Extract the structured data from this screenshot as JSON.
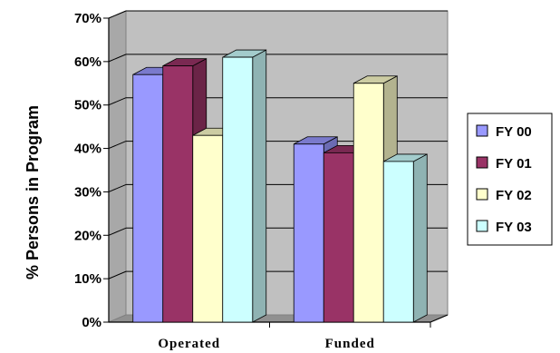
{
  "chart_data": {
    "type": "bar",
    "title": "",
    "xlabel": "",
    "ylabel": "% Persons in Program",
    "ylim": [
      0,
      70
    ],
    "yticks": [
      "0%",
      "10%",
      "20%",
      "30%",
      "40%",
      "50%",
      "60%",
      "70%"
    ],
    "categories": [
      "Operated",
      "Funded"
    ],
    "series": [
      {
        "name": "FY 00",
        "values": [
          57,
          41
        ],
        "color": "#9999ff",
        "side": "#6b6bb3",
        "top": "#7a7acc"
      },
      {
        "name": "FY 01",
        "values": [
          59,
          39
        ],
        "color": "#993366",
        "side": "#6b2447",
        "top": "#7a2952"
      },
      {
        "name": "FY 02",
        "values": [
          43,
          55
        ],
        "color": "#ffffcc",
        "side": "#b3b38f",
        "top": "#cccca3"
      },
      {
        "name": "FY 03",
        "values": [
          61,
          37
        ],
        "color": "#ccffff",
        "side": "#8fb3b3",
        "top": "#a3cccc"
      }
    ],
    "grid": true,
    "legend": "right",
    "plot_background": "#c0c0c0"
  }
}
